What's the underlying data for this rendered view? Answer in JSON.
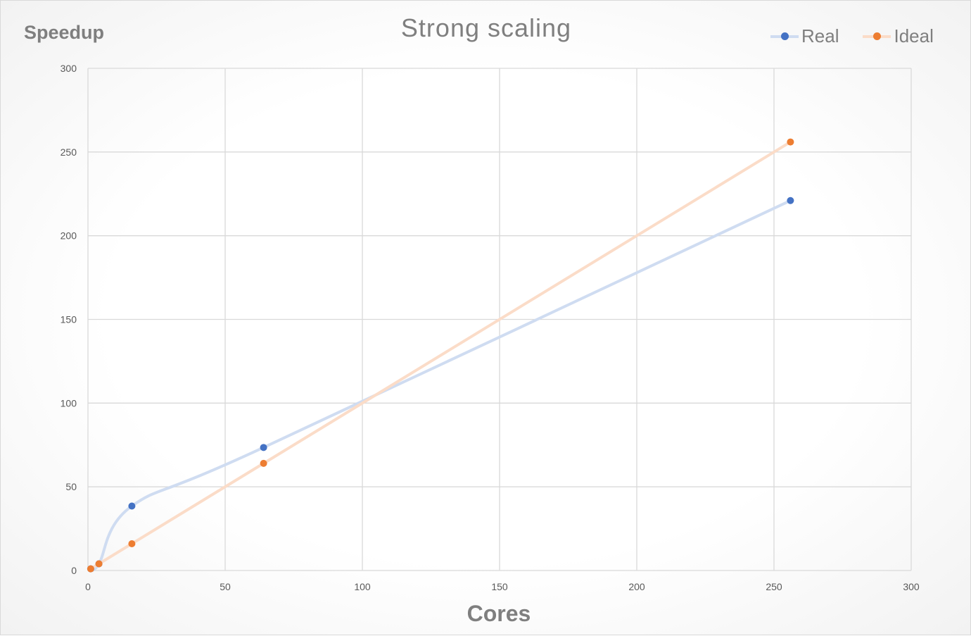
{
  "chart_data": {
    "type": "scatter",
    "title": "Strong scaling",
    "xlabel": "Cores",
    "ylabel": "Speedup",
    "xlim": [
      0,
      300
    ],
    "ylim": [
      0,
      300
    ],
    "x_ticks": [
      "0",
      "50",
      "100",
      "150",
      "200",
      "250",
      "300"
    ],
    "y_ticks": [
      "0",
      "50",
      "100",
      "150",
      "200",
      "250",
      "300"
    ],
    "grid": true,
    "legend_position": "top-right",
    "series": [
      {
        "name": "Real",
        "color": "#4472c4",
        "line_color": "#cfdcf1",
        "smooth": true,
        "points": [
          {
            "x": 1,
            "y": 1
          },
          {
            "x": 4,
            "y": 4
          },
          {
            "x": 16,
            "y": 38.5
          },
          {
            "x": 64,
            "y": 73.5
          },
          {
            "x": 256,
            "y": 221
          }
        ]
      },
      {
        "name": "Ideal",
        "color": "#ed7d31",
        "line_color": "#fbdcc8",
        "smooth": false,
        "points": [
          {
            "x": 1,
            "y": 1
          },
          {
            "x": 4,
            "y": 4
          },
          {
            "x": 16,
            "y": 16
          },
          {
            "x": 64,
            "y": 64
          },
          {
            "x": 256,
            "y": 256
          }
        ]
      }
    ]
  }
}
